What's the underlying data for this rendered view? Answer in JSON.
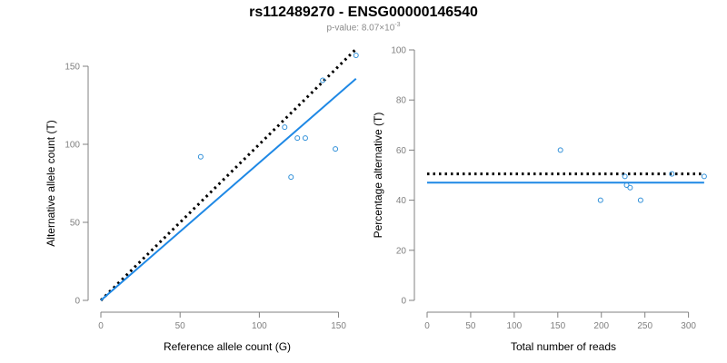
{
  "title": "rs112489270 - ENSG00000146540",
  "subtitle": {
    "prefix": "p-value: 8.07×10",
    "exponent": "-3"
  },
  "colors": {
    "points": "#2f8fd8",
    "fit": "#1e88e5",
    "reference": "#000000",
    "axis": "#808080"
  },
  "chart_data": [
    {
      "type": "scatter",
      "id": "left",
      "xlabel": "Reference allele count (G)",
      "ylabel": "Alternative allele count (T)",
      "xlim": [
        0,
        160
      ],
      "ylim": [
        0,
        150
      ],
      "xticks": [
        0,
        50,
        100,
        150
      ],
      "yticks": [
        0,
        50,
        100,
        150
      ],
      "points": [
        {
          "x": 63,
          "y": 92
        },
        {
          "x": 116,
          "y": 111
        },
        {
          "x": 120,
          "y": 79
        },
        {
          "x": 124,
          "y": 104
        },
        {
          "x": 129,
          "y": 104
        },
        {
          "x": 140,
          "y": 141
        },
        {
          "x": 148,
          "y": 97
        },
        {
          "x": 161,
          "y": 157
        }
      ],
      "lines": [
        {
          "name": "expected",
          "style": "dotted",
          "x": [
            0,
            161
          ],
          "y": [
            0,
            161
          ]
        },
        {
          "name": "fit",
          "style": "solid",
          "x": [
            0,
            161
          ],
          "y": [
            0,
            142
          ]
        }
      ]
    },
    {
      "type": "scatter",
      "id": "right",
      "xlabel": "Total number of reads",
      "ylabel": "Percentage alternative (T)",
      "xlim": [
        0,
        315
      ],
      "ylim": [
        0,
        100
      ],
      "xticks": [
        0,
        50,
        100,
        150,
        200,
        250,
        300
      ],
      "yticks": [
        0,
        20,
        40,
        60,
        80,
        100
      ],
      "points": [
        {
          "x": 153,
          "y": 60
        },
        {
          "x": 199,
          "y": 40
        },
        {
          "x": 227,
          "y": 49.5
        },
        {
          "x": 229,
          "y": 46
        },
        {
          "x": 233,
          "y": 45
        },
        {
          "x": 245,
          "y": 40
        },
        {
          "x": 281,
          "y": 50.5
        },
        {
          "x": 318,
          "y": 49.5
        }
      ],
      "lines": [
        {
          "name": "expected",
          "style": "dotted",
          "x": [
            0,
            318
          ],
          "y": [
            50.5,
            50.5
          ]
        },
        {
          "name": "fit",
          "style": "solid",
          "x": [
            0,
            318
          ],
          "y": [
            47,
            47
          ]
        }
      ]
    }
  ]
}
